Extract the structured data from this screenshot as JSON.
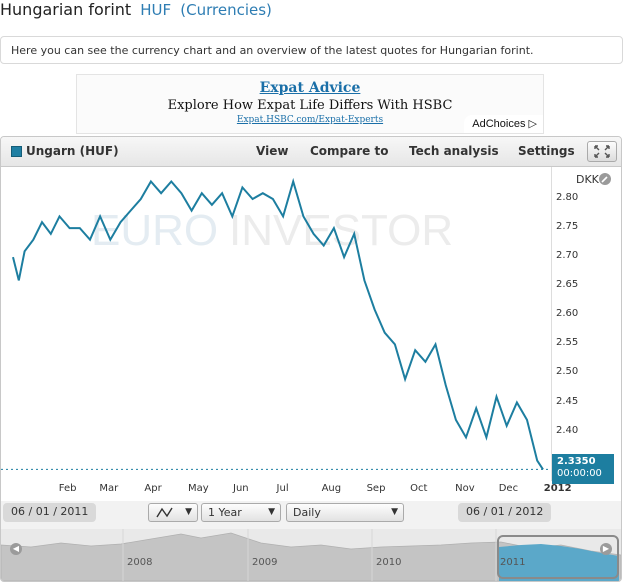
{
  "header": {
    "title": "Hungarian forint",
    "code": "HUF",
    "category": "(Currencies)"
  },
  "intro_text": "Here you can see the currency chart and an overview of the latest quotes for Hungarian forint.",
  "ad": {
    "title": "Expat Advice",
    "text": "Explore How Expat Life Differs With HSBC",
    "url": "Expat.HSBC.com/Expat-Experts",
    "adchoices": "AdChoices"
  },
  "toolbar": {
    "series_name": "Ungarn (HUF)",
    "menus": [
      "View",
      "Compare to",
      "Tech analysis",
      "Settings"
    ]
  },
  "chart": {
    "watermark_a": "EURO",
    "watermark_b": "INVESTOR",
    "unit": "DKK",
    "last_value": "2.3350",
    "last_time": "00:00:00",
    "yticks": [
      "2.80",
      "2.75",
      "2.70",
      "2.65",
      "2.60",
      "2.55",
      "2.50",
      "2.45",
      "2.40"
    ],
    "xticks": [
      "Feb",
      "Mar",
      "Apr",
      "May",
      "Jun",
      "Jul",
      "Aug",
      "Sep",
      "Oct",
      "Nov",
      "Dec",
      "2012"
    ]
  },
  "controls": {
    "start_date": "06 / 01 / 2011",
    "end_date": "06 / 01 / 2012",
    "period": "1 Year",
    "interval": "Daily"
  },
  "navigator": {
    "years": [
      "2008",
      "2009",
      "2010",
      "2011"
    ]
  },
  "colors": {
    "series": "#1d7ea0",
    "link": "#2e7db3"
  },
  "chart_data": {
    "type": "line",
    "title": "",
    "xlabel": "",
    "ylabel": "DKK",
    "ylim": [
      2.315,
      2.855
    ],
    "series": [
      {
        "name": "Ungarn (HUF)",
        "x": [
          "2011-01-06",
          "2011-01-10",
          "2011-01-14",
          "2011-01-20",
          "2011-01-26",
          "2011-02-01",
          "2011-02-07",
          "2011-02-14",
          "2011-02-21",
          "2011-02-28",
          "2011-03-07",
          "2011-03-14",
          "2011-03-21",
          "2011-03-28",
          "2011-04-04",
          "2011-04-11",
          "2011-04-18",
          "2011-04-25",
          "2011-05-02",
          "2011-05-09",
          "2011-05-16",
          "2011-05-23",
          "2011-05-30",
          "2011-06-06",
          "2011-06-13",
          "2011-06-20",
          "2011-06-27",
          "2011-07-04",
          "2011-07-11",
          "2011-07-18",
          "2011-07-25",
          "2011-08-01",
          "2011-08-08",
          "2011-08-15",
          "2011-08-22",
          "2011-08-29",
          "2011-09-05",
          "2011-09-12",
          "2011-09-19",
          "2011-09-26",
          "2011-10-03",
          "2011-10-10",
          "2011-10-17",
          "2011-10-24",
          "2011-10-31",
          "2011-11-07",
          "2011-11-14",
          "2011-11-21",
          "2011-11-28",
          "2011-12-05",
          "2011-12-12",
          "2011-12-19",
          "2011-12-26",
          "2012-01-02",
          "2012-01-06"
        ],
        "values": [
          2.7,
          2.66,
          2.71,
          2.73,
          2.76,
          2.74,
          2.77,
          2.75,
          2.75,
          2.73,
          2.77,
          2.73,
          2.76,
          2.78,
          2.8,
          2.83,
          2.81,
          2.83,
          2.81,
          2.78,
          2.81,
          2.79,
          2.81,
          2.77,
          2.82,
          2.8,
          2.81,
          2.8,
          2.77,
          2.83,
          2.77,
          2.74,
          2.72,
          2.75,
          2.7,
          2.74,
          2.66,
          2.61,
          2.57,
          2.55,
          2.49,
          2.54,
          2.52,
          2.55,
          2.48,
          2.42,
          2.39,
          2.44,
          2.39,
          2.46,
          2.41,
          2.45,
          2.42,
          2.35,
          2.335
        ]
      }
    ]
  }
}
